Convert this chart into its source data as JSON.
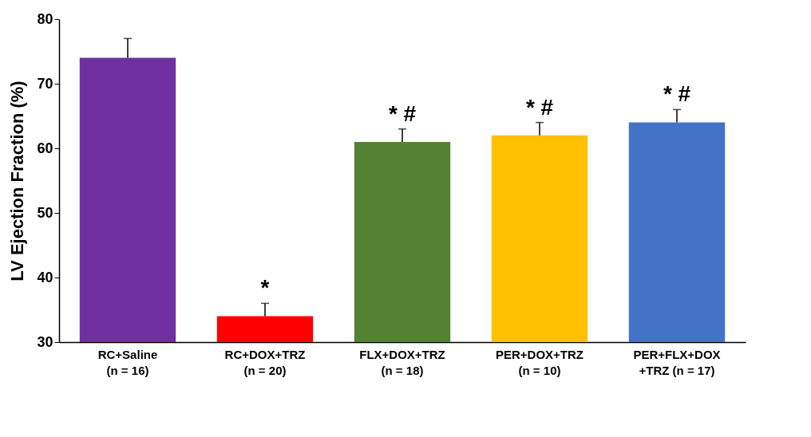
{
  "chart_data": {
    "type": "bar",
    "ylabel": "LV Ejection Fraction (%)",
    "categories": [
      "RC+Saline\n(n = 16)",
      "RC+DOX+TRZ\n(n = 20)",
      "FLX+DOX+TRZ\n(n = 18)",
      "PER+DOX+TRZ\n(n = 10)",
      "PER+FLX+DOX\n+TRZ (n = 17)"
    ],
    "values": [
      74,
      34,
      61,
      62,
      64
    ],
    "colors": [
      "#7030a0",
      "#ff0000",
      "#548235",
      "#ffc000",
      "#4472c4"
    ],
    "errors": [
      [
        74,
        77
      ],
      [
        34,
        36
      ],
      [
        61,
        63
      ],
      [
        62,
        64
      ],
      [
        64,
        66
      ]
    ],
    "ylim": [
      30,
      80
    ],
    "yticks": [
      30,
      40,
      50,
      60,
      70,
      80
    ],
    "grid": false,
    "legend": false,
    "annotations": [
      "*",
      "* #",
      "* #",
      "* #"
    ]
  }
}
